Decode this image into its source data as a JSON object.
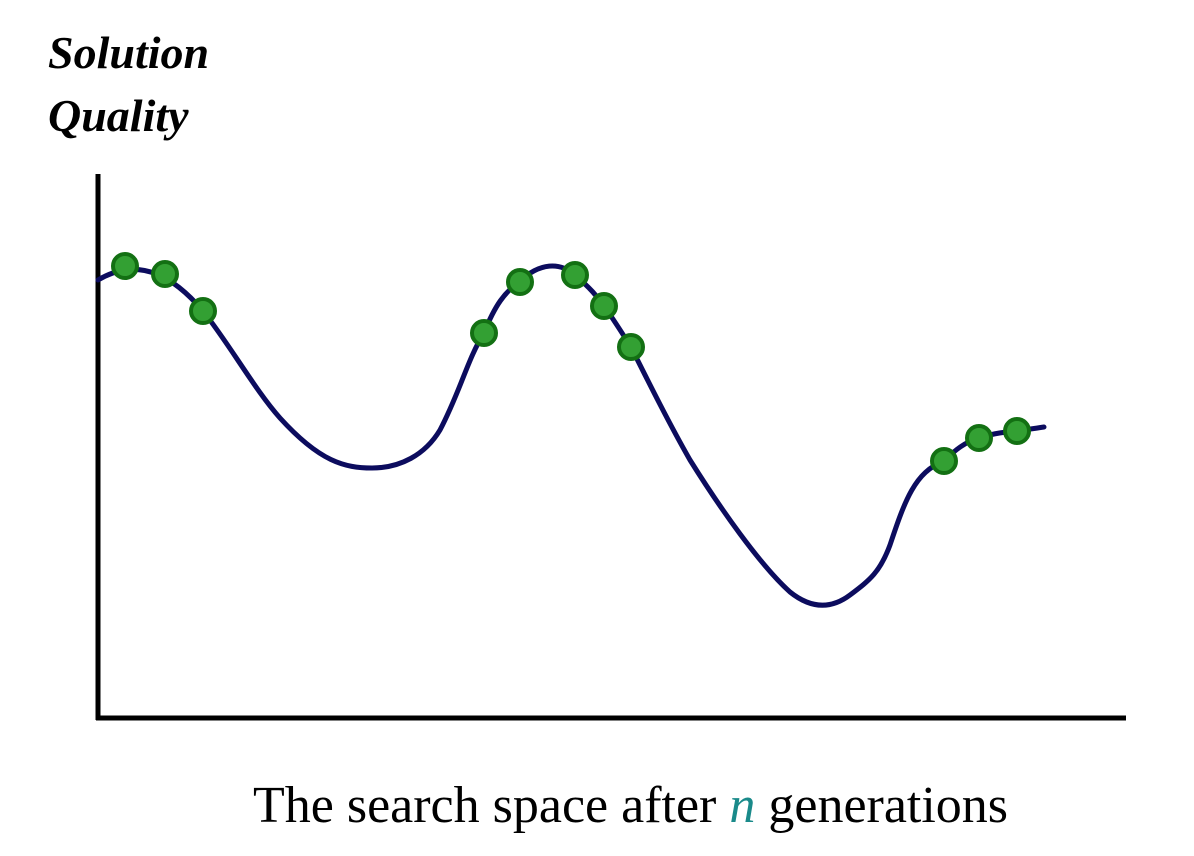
{
  "diagram": {
    "y_label_lines": [
      "Solution",
      "Quality"
    ],
    "caption": {
      "before": "The search space after ",
      "variable": "n",
      "after": " generations"
    },
    "colors": {
      "axis": "#000000",
      "curve": "#0c0c5e",
      "point_fill": "#33a033",
      "point_stroke": "#137013",
      "caption_text": "#000000",
      "variable_text": "#1a8a8a"
    }
  }
}
